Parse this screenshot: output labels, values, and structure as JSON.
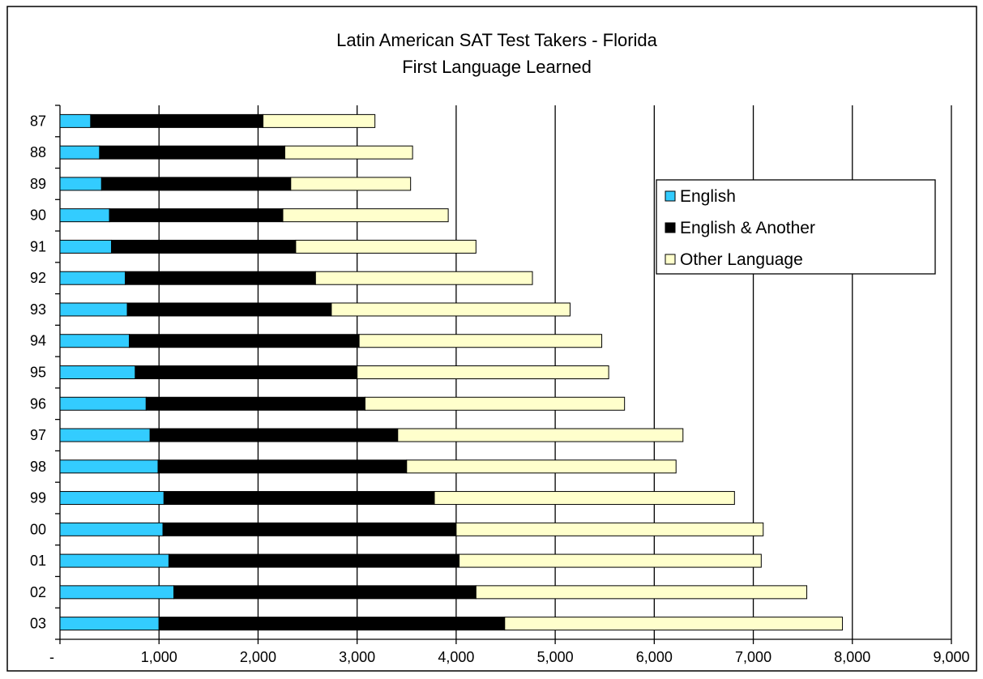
{
  "chart_data": {
    "type": "bar",
    "orientation": "horizontal",
    "stacked": true,
    "title": "Latin American SAT Test Takers - Florida",
    "subtitle": "First Language Learned",
    "categories": [
      "87",
      "88",
      "89",
      "90",
      "91",
      "92",
      "93",
      "94",
      "95",
      "96",
      "97",
      "98",
      "99",
      "00",
      "01",
      "02",
      "03"
    ],
    "x_tick_labels": [
      "-",
      "1,000",
      "2,000",
      "3,000",
      "4,000",
      "5,000",
      "6,000",
      "7,000",
      "8,000",
      "9,000"
    ],
    "xlim": [
      0,
      9000
    ],
    "grid": "vertical major gridlines",
    "legend_position": "right",
    "series": [
      {
        "name": "English",
        "color": "#33CCFF",
        "values": [
          310,
          400,
          420,
          500,
          520,
          660,
          680,
          700,
          760,
          870,
          910,
          990,
          1050,
          1040,
          1100,
          1150,
          1000
        ]
      },
      {
        "name": "English & Another",
        "color": "#000000",
        "values": [
          1740,
          1870,
          1910,
          1750,
          1860,
          1920,
          2060,
          2320,
          2240,
          2210,
          2500,
          2510,
          2730,
          2960,
          2930,
          3050,
          3490
        ]
      },
      {
        "name": "Other Language",
        "color": "#FFFFCC",
        "values": [
          1130,
          1290,
          1210,
          1670,
          1820,
          2190,
          2410,
          2450,
          2540,
          2620,
          2880,
          2720,
          3030,
          3100,
          3050,
          3340,
          3410
        ]
      }
    ]
  }
}
